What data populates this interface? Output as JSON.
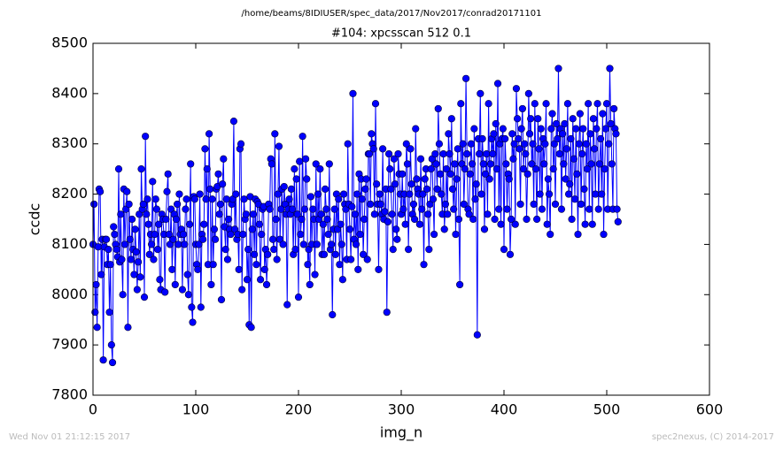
{
  "chart_data": {
    "type": "line",
    "subtitle": "/home/beams/8IDIUSER/spec_data/2017/Nov2017/conrad20171101",
    "title": "#104: xpcsscan 512 0.1",
    "x_label": "img_n",
    "y_label": "ccdc",
    "footer_left": "Wed Nov 01 21:12:15 2017",
    "footer_right": "spec2nexus, (C) 2014-2017",
    "xlim": [
      0,
      600
    ],
    "xticks": [
      0,
      100,
      200,
      300,
      400,
      500,
      600
    ],
    "ylim": [
      7800,
      8500
    ],
    "yticks": [
      7800,
      7900,
      8000,
      8100,
      8200,
      8300,
      8400,
      8500
    ],
    "x": [
      0,
      1,
      2,
      3,
      4,
      5,
      6,
      7,
      8,
      9,
      10,
      11,
      12,
      13,
      14,
      15,
      16,
      17,
      18,
      19,
      20,
      21,
      22,
      23,
      24,
      25,
      26,
      27,
      28,
      29,
      30,
      31,
      32,
      33,
      34,
      35,
      36,
      37,
      38,
      39,
      40,
      41,
      42,
      43,
      44,
      45,
      46,
      47,
      48,
      49,
      50,
      51,
      52,
      53,
      54,
      55,
      56,
      57,
      58,
      59,
      60,
      61,
      62,
      63,
      64,
      65,
      66,
      67,
      68,
      69,
      70,
      71,
      72,
      73,
      74,
      75,
      76,
      77,
      78,
      79,
      80,
      81,
      82,
      83,
      84,
      85,
      86,
      87,
      88,
      89,
      90,
      91,
      92,
      93,
      94,
      95,
      96,
      97,
      98,
      99,
      100,
      101,
      102,
      103,
      104,
      105,
      106,
      107,
      108,
      109,
      110,
      111,
      112,
      113,
      114,
      115,
      116,
      117,
      118,
      119,
      120,
      121,
      122,
      123,
      124,
      125,
      126,
      127,
      128,
      129,
      130,
      131,
      132,
      133,
      134,
      135,
      136,
      137,
      138,
      139,
      140,
      141,
      142,
      143,
      144,
      145,
      146,
      147,
      148,
      149,
      150,
      151,
      152,
      153,
      154,
      155,
      156,
      157,
      158,
      159,
      160,
      161,
      162,
      163,
      164,
      165,
      166,
      167,
      168,
      169,
      170,
      171,
      172,
      173,
      174,
      175,
      176,
      177,
      178,
      179,
      180,
      181,
      182,
      183,
      184,
      185,
      186,
      187,
      188,
      189,
      190,
      191,
      192,
      193,
      194,
      195,
      196,
      197,
      198,
      199,
      200,
      201,
      202,
      203,
      204,
      205,
      206,
      207,
      208,
      209,
      210,
      211,
      212,
      213,
      214,
      215,
      216,
      217,
      218,
      219,
      220,
      221,
      222,
      223,
      224,
      225,
      226,
      227,
      228,
      229,
      230,
      231,
      232,
      233,
      234,
      235,
      236,
      237,
      238,
      239,
      240,
      241,
      242,
      243,
      244,
      245,
      246,
      247,
      248,
      249,
      250,
      251,
      252,
      253,
      254,
      255,
      256,
      257,
      258,
      259,
      260,
      261,
      262,
      263,
      264,
      265,
      266,
      267,
      268,
      269,
      270,
      271,
      272,
      273,
      274,
      275,
      276,
      277,
      278,
      279,
      280,
      281,
      282,
      283,
      284,
      285,
      286,
      287,
      288,
      289,
      290,
      291,
      292,
      293,
      294,
      295,
      296,
      297,
      298,
      299,
      300,
      301,
      302,
      303,
      304,
      305,
      306,
      307,
      308,
      309,
      310,
      311,
      312,
      313,
      314,
      315,
      316,
      317,
      318,
      319,
      320,
      321,
      322,
      323,
      324,
      325,
      326,
      327,
      328,
      329,
      330,
      331,
      332,
      333,
      334,
      335,
      336,
      337,
      338,
      339,
      340,
      341,
      342,
      343,
      344,
      345,
      346,
      347,
      348,
      349,
      350,
      351,
      352,
      353,
      354,
      355,
      356,
      357,
      358,
      359,
      360,
      361,
      362,
      363,
      364,
      365,
      366,
      367,
      368,
      369,
      370,
      371,
      372,
      373,
      374,
      375,
      376,
      377,
      378,
      379,
      380,
      381,
      382,
      383,
      384,
      385,
      386,
      387,
      388,
      389,
      390,
      391,
      392,
      393,
      394,
      395,
      396,
      397,
      398,
      399,
      400,
      401,
      402,
      403,
      404,
      405,
      406,
      407,
      408,
      409,
      410,
      411,
      412,
      413,
      414,
      415,
      416,
      417,
      418,
      419,
      420,
      421,
      422,
      423,
      424,
      425,
      426,
      427,
      428,
      429,
      430,
      431,
      432,
      433,
      434,
      435,
      436,
      437,
      438,
      439,
      440,
      441,
      442,
      443,
      444,
      445,
      446,
      447,
      448,
      449,
      450,
      451,
      452,
      453,
      454,
      455,
      456,
      457,
      458,
      459,
      460,
      461,
      462,
      463,
      464,
      465,
      466,
      467,
      468,
      469,
      470,
      471,
      472,
      473,
      474,
      475,
      476,
      477,
      478,
      479,
      480,
      481,
      482,
      483,
      484,
      485,
      486,
      487,
      488,
      489,
      490,
      491,
      492,
      493,
      494,
      495,
      496,
      497,
      498,
      499,
      500,
      501,
      502,
      503,
      504,
      505,
      506,
      507,
      508,
      509,
      510,
      511
    ],
    "series": [
      {
        "color": "#0000ff",
        "values": [
          8100,
          8180,
          7965,
          8020,
          7935,
          8095,
          8210,
          8205,
          8040,
          8110,
          7870,
          8095,
          8110,
          8110,
          8060,
          8090,
          7965,
          8060,
          7900,
          7865,
          8135,
          8120,
          8100,
          8090,
          8075,
          8250,
          8065,
          8160,
          8070,
          8000,
          8210,
          8100,
          8170,
          8205,
          7935,
          8180,
          8110,
          8070,
          8150,
          8090,
          8040,
          8130,
          8085,
          8010,
          8065,
          8160,
          8035,
          8250,
          8170,
          8180,
          7995,
          8315,
          8160,
          8190,
          8140,
          8080,
          8120,
          8100,
          8225,
          8070,
          8120,
          8190,
          8170,
          8090,
          8140,
          8030,
          8010,
          8160,
          8150,
          8120,
          8005,
          8150,
          8205,
          8240,
          8120,
          8100,
          8170,
          8050,
          8110,
          8160,
          8020,
          8150,
          8180,
          8100,
          8200,
          8120,
          8130,
          8010,
          8120,
          8100,
          8170,
          8190,
          8040,
          8000,
          8140,
          8260,
          7975,
          7945,
          8195,
          8190,
          8100,
          8060,
          8050,
          8100,
          8200,
          7975,
          8120,
          8110,
          8140,
          8290,
          8190,
          8250,
          8060,
          8320,
          8210,
          8020,
          8190,
          8060,
          8130,
          8110,
          8210,
          8215,
          8240,
          8160,
          8180,
          7990,
          8220,
          8270,
          8135,
          8090,
          8190,
          8070,
          8150,
          8130,
          8120,
          8180,
          8190,
          8345,
          8130,
          8200,
          8110,
          8120,
          8050,
          8290,
          8300,
          8010,
          8120,
          8190,
          8150,
          8160,
          8030,
          8090,
          7940,
          8195,
          7935,
          8130,
          8160,
          8080,
          8190,
          8060,
          8185,
          8180,
          8140,
          8030,
          8120,
          8170,
          8175,
          8050,
          8090,
          8020,
          8080,
          8180,
          8170,
          8270,
          8260,
          8110,
          8090,
          8320,
          8150,
          8070,
          8200,
          8295,
          8110,
          8170,
          8210,
          8100,
          8215,
          8180,
          8160,
          7980,
          8170,
          8190,
          8160,
          8210,
          8170,
          8080,
          8250,
          8090,
          8230,
          8160,
          7995,
          8265,
          8120,
          8150,
          8315,
          8100,
          8170,
          8270,
          8230,
          8060,
          8090,
          8020,
          8195,
          8100,
          8170,
          8150,
          8040,
          8260,
          8100,
          8200,
          8150,
          8250,
          8160,
          8080,
          8140,
          8080,
          8210,
          8170,
          8150,
          8120,
          8260,
          8090,
          8100,
          7960,
          8130,
          8170,
          8080,
          8200,
          8130,
          8190,
          8060,
          8140,
          8100,
          8030,
          8200,
          8180,
          8170,
          8070,
          8300,
          8180,
          8130,
          8070,
          8175,
          8400,
          8110,
          8160,
          8100,
          8200,
          8050,
          8240,
          8120,
          8230,
          8190,
          8080,
          8150,
          8210,
          8230,
          8070,
          8280,
          8280,
          8180,
          8320,
          8300,
          8290,
          8160,
          8380,
          8220,
          8180,
          8050,
          8200,
          8180,
          8160,
          8290,
          8150,
          8165,
          8210,
          7965,
          8145,
          8280,
          8250,
          8210,
          8160,
          8090,
          8270,
          8220,
          8130,
          8110,
          8280,
          8240,
          8200,
          8160,
          8240,
          8170,
          8200,
          8140,
          8300,
          8260,
          8090,
          8200,
          8290,
          8220,
          8160,
          8180,
          8150,
          8330,
          8230,
          8210,
          8200,
          8140,
          8270,
          8170,
          8200,
          8060,
          8230,
          8250,
          8210,
          8160,
          8090,
          8180,
          8250,
          8270,
          8190,
          8120,
          8280,
          8260,
          8210,
          8370,
          8300,
          8240,
          8200,
          8160,
          8280,
          8130,
          8180,
          8250,
          8160,
          8320,
          8280,
          8240,
          8350,
          8210,
          8170,
          8260,
          8120,
          8230,
          8290,
          8150,
          8020,
          8380,
          8260,
          8300,
          8180,
          8250,
          8430,
          8280,
          8170,
          8160,
          8240,
          8300,
          8260,
          8150,
          8330,
          8190,
          8220,
          7920,
          8310,
          8280,
          8400,
          8200,
          8310,
          8260,
          8130,
          8240,
          8280,
          8160,
          8380,
          8230,
          8260,
          8310,
          8280,
          8320,
          8150,
          8340,
          8250,
          8420,
          8170,
          8300,
          8140,
          8310,
          8330,
          8090,
          8310,
          8260,
          8170,
          8240,
          8230,
          8080,
          8150,
          8320,
          8270,
          8300,
          8140,
          8410,
          8350,
          8310,
          8290,
          8180,
          8330,
          8370,
          8250,
          8300,
          8280,
          8150,
          8240,
          8400,
          8320,
          8350,
          8260,
          8300,
          8180,
          8380,
          8250,
          8150,
          8350,
          8290,
          8200,
          8330,
          8170,
          8310,
          8260,
          8300,
          8380,
          8140,
          8230,
          8200,
          8120,
          8330,
          8360,
          8250,
          8300,
          8180,
          8340,
          8310,
          8450,
          8280,
          8330,
          8170,
          8320,
          8260,
          8340,
          8230,
          8290,
          8380,
          8200,
          8220,
          8310,
          8150,
          8350,
          8270,
          8190,
          8330,
          8240,
          8120,
          8300,
          8360,
          8180,
          8280,
          8330,
          8210,
          8140,
          8300,
          8250,
          8380,
          8170,
          8320,
          8260,
          8140,
          8350,
          8290,
          8200,
          8330,
          8380,
          8170,
          8260,
          8310,
          8200,
          8360,
          8120,
          8250,
          8330,
          8380,
          8170,
          8300,
          8450,
          8340,
          8260,
          8170,
          8370,
          8330,
          8320,
          8170,
          8145
        ]
      }
    ]
  }
}
